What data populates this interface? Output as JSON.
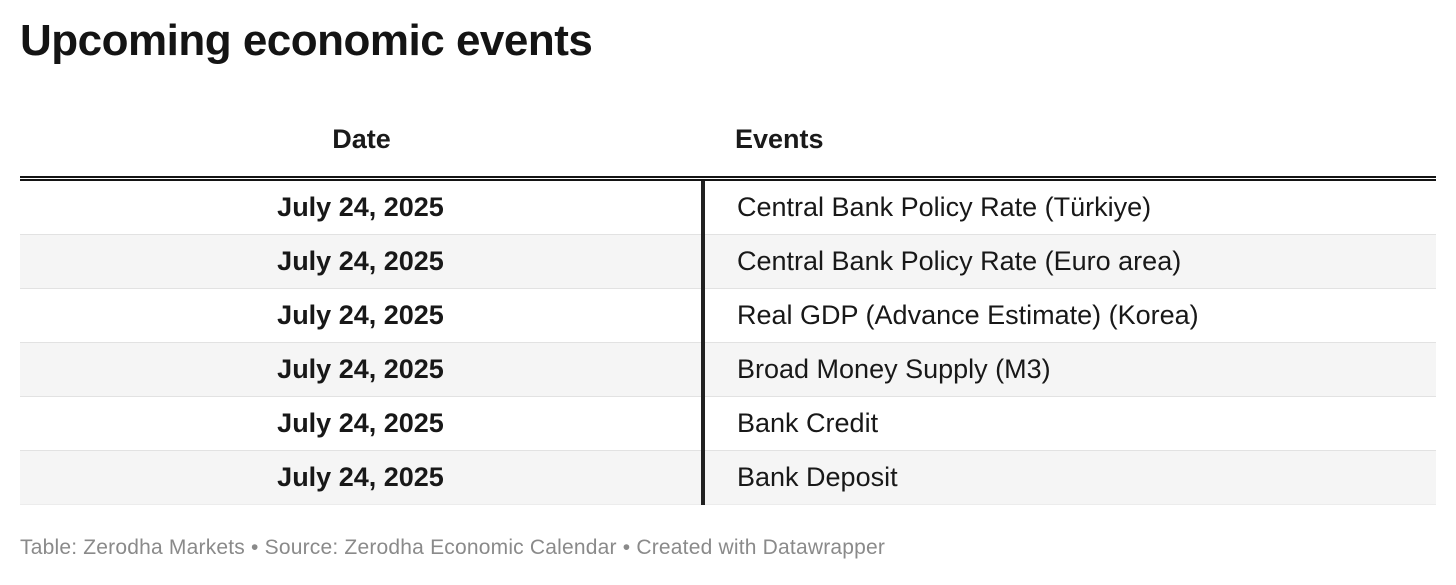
{
  "title": "Upcoming economic events",
  "table": {
    "headers": {
      "date": "Date",
      "events": "Events"
    },
    "rows": [
      {
        "date": "July 24, 2025",
        "event": "Central Bank Policy Rate (Türkiye)"
      },
      {
        "date": "July 24, 2025",
        "event": "Central Bank Policy Rate (Euro area)"
      },
      {
        "date": "July 24, 2025",
        "event": "Real GDP (Advance Estimate) (Korea)"
      },
      {
        "date": "July 24, 2025",
        "event": "Broad Money Supply (M3)"
      },
      {
        "date": "July 24, 2025",
        "event": "Bank Credit"
      },
      {
        "date": "July 24, 2025",
        "event": "Bank Deposit"
      }
    ]
  },
  "footer": {
    "text": "Table: Zerodha Markets • Source: Zerodha Economic Calendar • Created with Datawrapper"
  },
  "colors": {
    "text": "#181818",
    "title_text": "#141414",
    "row_alt_background": "#f5f5f5",
    "row_separator": "#e2e2e2",
    "header_rule": "#141414",
    "column_divider": "#212121",
    "footer_text": "#8a8a8a"
  },
  "chart_data": {
    "type": "table",
    "title": "Upcoming economic events",
    "columns": [
      "Date",
      "Events"
    ],
    "rows": [
      [
        "July 24, 2025",
        "Central Bank Policy Rate (Türkiye)"
      ],
      [
        "July 24, 2025",
        "Central Bank Policy Rate (Euro area)"
      ],
      [
        "July 24, 2025",
        "Real GDP (Advance Estimate) (Korea)"
      ],
      [
        "July 24, 2025",
        "Broad Money Supply (M3)"
      ],
      [
        "July 24, 2025",
        "Bank Credit"
      ],
      [
        "July 24, 2025",
        "Bank Deposit"
      ]
    ],
    "layout_hints": {
      "date_column": "centered, bold",
      "events_column": "left-aligned, regular",
      "striped_rows": true,
      "footer": "Table: Zerodha Markets • Source: Zerodha Economic Calendar • Created with Datawrapper"
    }
  }
}
